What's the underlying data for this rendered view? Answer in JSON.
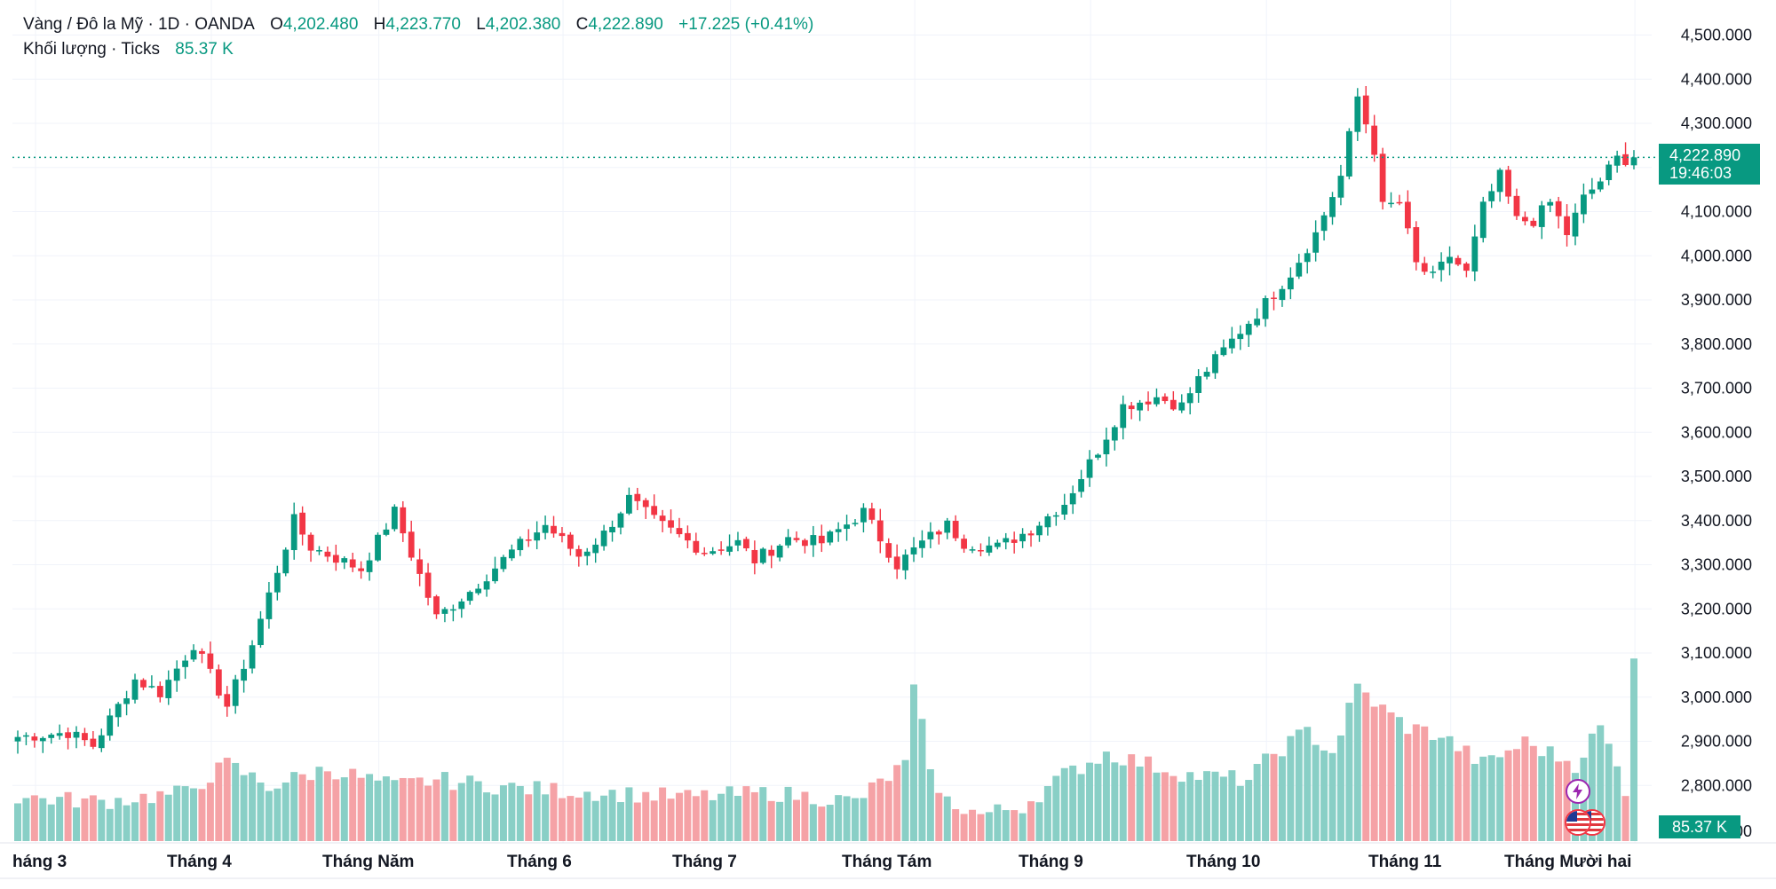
{
  "legend": {
    "symbol": "Vàng / Đô la Mỹ · 1D · OANDA",
    "open_label": "O",
    "open": "4,202.480",
    "high_label": "H",
    "high": "4,223.770",
    "low_label": "L",
    "low": "4,202.380",
    "close_label": "C",
    "close": "4,222.890",
    "change": "+17.225 (+0.41%)",
    "volume_label": "Khối lượng · Ticks",
    "volume_value": "85.37 K"
  },
  "last_price": {
    "price": "4,222.890",
    "countdown": "19:46:03"
  },
  "volume_tag": "85.37 K",
  "colors": {
    "up": "#089981",
    "down": "#f23645",
    "vol_up": "#89cfc6",
    "vol_down": "#f5a2a6",
    "grid": "#f0f3fa",
    "text": "#131722"
  },
  "icons": [
    "lightning-event-icon",
    "us-flag-event-icon"
  ],
  "chart_data": {
    "type": "candlestick",
    "title": "Vàng / Đô la Mỹ",
    "interval": "1D",
    "source": "OANDA",
    "y_axis": {
      "ylim": [
        2700,
        4550
      ],
      "ticks": [
        "4,500.000",
        "4,400.000",
        "4,300.000",
        "4,200.000",
        "4,100.000",
        "4,000.000",
        "3,900.000",
        "3,800.000",
        "3,700.000",
        "3,600.000",
        "3,500.000",
        "3,400.000",
        "3,300.000",
        "3,200.000",
        "3,100.000",
        "3,000.000",
        "2,900.000",
        "2,800.000"
      ],
      "tick_values": [
        4500,
        4400,
        4300,
        4200,
        4100,
        4000,
        3900,
        3800,
        3700,
        3600,
        3500,
        3400,
        3300,
        3200,
        3100,
        3000,
        2900,
        2800
      ],
      "partial_bottom_label": "00"
    },
    "x_axis": {
      "labels": [
        "háng 3",
        "Tháng 4",
        "Tháng Năm",
        "Tháng 6",
        "Tháng 7",
        "Tháng Tám",
        "Tháng 9",
        "Tháng 10",
        "Tháng 11",
        "Tháng Mười hai"
      ],
      "label_bar_index": [
        0,
        21,
        41,
        63,
        83,
        105,
        126,
        147,
        169,
        191
      ]
    },
    "last_price_line": 4222.89,
    "anchors": [
      [
        0,
        2910
      ],
      [
        6,
        2920
      ],
      [
        9,
        2890
      ],
      [
        14,
        3040
      ],
      [
        17,
        3010
      ],
      [
        21,
        3120
      ],
      [
        25,
        2980
      ],
      [
        28,
        3120
      ],
      [
        33,
        3400
      ],
      [
        35,
        3340
      ],
      [
        41,
        3290
      ],
      [
        45,
        3420
      ],
      [
        50,
        3180
      ],
      [
        54,
        3240
      ],
      [
        59,
        3330
      ],
      [
        63,
        3390
      ],
      [
        67,
        3320
      ],
      [
        70,
        3370
      ],
      [
        73,
        3450
      ],
      [
        76,
        3400
      ],
      [
        82,
        3330
      ],
      [
        86,
        3350
      ],
      [
        88,
        3310
      ],
      [
        92,
        3360
      ],
      [
        96,
        3350
      ],
      [
        101,
        3420
      ],
      [
        105,
        3300
      ],
      [
        108,
        3350
      ],
      [
        111,
        3390
      ],
      [
        113,
        3350
      ],
      [
        117,
        3340
      ],
      [
        121,
        3380
      ],
      [
        125,
        3440
      ],
      [
        129,
        3560
      ],
      [
        132,
        3660
      ],
      [
        136,
        3680
      ],
      [
        139,
        3660
      ],
      [
        141,
        3720
      ],
      [
        146,
        3830
      ],
      [
        148,
        3870
      ],
      [
        152,
        3960
      ],
      [
        155,
        4050
      ],
      [
        158,
        4180
      ],
      [
        160,
        4360
      ],
      [
        162,
        4240
      ],
      [
        163,
        4110
      ],
      [
        165,
        4120
      ],
      [
        167,
        3980
      ],
      [
        169,
        3950
      ],
      [
        171,
        4000
      ],
      [
        173,
        3960
      ],
      [
        175,
        4110
      ],
      [
        177,
        4180
      ],
      [
        179,
        4080
      ],
      [
        181,
        4080
      ],
      [
        183,
        4120
      ],
      [
        185,
        4050
      ],
      [
        187,
        4130
      ],
      [
        189,
        4170
      ],
      [
        191,
        4220
      ],
      [
        193,
        4218
      ]
    ],
    "volume_range": [
      0,
      85.37
    ],
    "volume_anchors": [
      [
        0,
        20
      ],
      [
        10,
        18
      ],
      [
        20,
        22
      ],
      [
        25,
        35
      ],
      [
        30,
        25
      ],
      [
        37,
        33
      ],
      [
        45,
        25
      ],
      [
        50,
        28
      ],
      [
        60,
        24
      ],
      [
        70,
        22
      ],
      [
        80,
        20
      ],
      [
        90,
        22
      ],
      [
        100,
        18
      ],
      [
        106,
        35
      ],
      [
        107,
        68
      ],
      [
        110,
        20
      ],
      [
        115,
        12
      ],
      [
        120,
        16
      ],
      [
        125,
        30
      ],
      [
        130,
        40
      ],
      [
        135,
        35
      ],
      [
        140,
        30
      ],
      [
        147,
        28
      ],
      [
        150,
        40
      ],
      [
        154,
        50
      ],
      [
        157,
        40
      ],
      [
        160,
        70
      ],
      [
        163,
        60
      ],
      [
        166,
        52
      ],
      [
        170,
        48
      ],
      [
        175,
        35
      ],
      [
        180,
        45
      ],
      [
        183,
        40
      ],
      [
        186,
        35
      ],
      [
        189,
        52
      ],
      [
        192,
        24
      ],
      [
        193,
        85
      ],
      [
        194,
        30
      ]
    ]
  }
}
